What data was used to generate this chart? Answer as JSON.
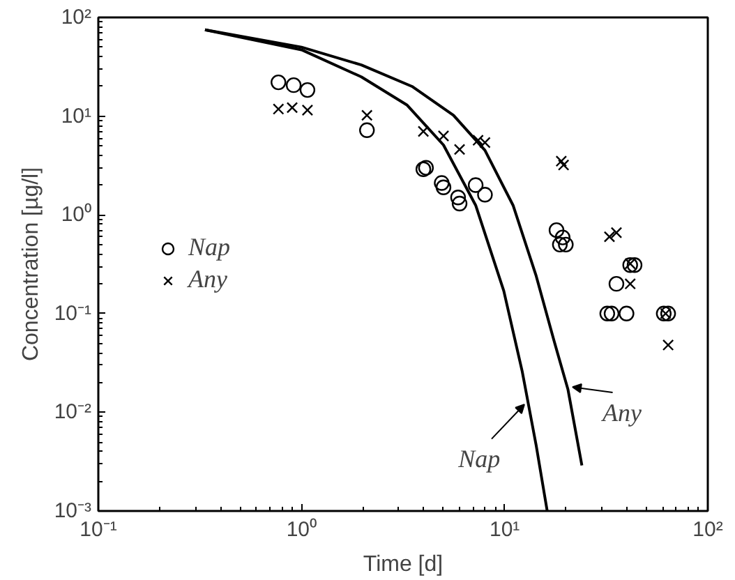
{
  "chart_data": {
    "type": "scatter",
    "xlabel": "Time [d]",
    "ylabel": "Concentration [µg/l]",
    "log": "xy",
    "xlim": [
      0.1,
      100
    ],
    "ylim": [
      0.001,
      100
    ],
    "xticks": [
      {
        "value": 0.1,
        "label": "10⁻¹"
      },
      {
        "value": 1,
        "label": "10⁰"
      },
      {
        "value": 10,
        "label": "10¹"
      },
      {
        "value": 100,
        "label": "10²"
      }
    ],
    "yticks": [
      {
        "value": 0.001,
        "label": "10⁻³"
      },
      {
        "value": 0.01,
        "label": "10⁻²"
      },
      {
        "value": 0.1,
        "label": "10⁻¹"
      },
      {
        "value": 1,
        "label": "10⁰"
      },
      {
        "value": 10,
        "label": "10¹"
      },
      {
        "value": 100,
        "label": "10²"
      }
    ],
    "grid": false,
    "legend": "left",
    "series": [
      {
        "name": "Nap",
        "marker": "circle",
        "color": "#000000",
        "x": [
          0.77,
          0.915,
          1.07,
          2.1,
          3.98,
          4.1,
          4.9,
          5.0,
          5.9,
          6.0,
          7.2,
          8.0,
          18,
          18.7,
          20,
          19.3,
          35.5,
          41.5,
          43.6,
          32,
          33.6,
          39.8,
          60.7,
          63.8
        ],
        "values": [
          22,
          20.6,
          18.4,
          7.2,
          2.9,
          3.0,
          2.1,
          1.9,
          1.5,
          1.3,
          2.0,
          1.6,
          0.7,
          0.5,
          0.5,
          0.59,
          0.2,
          0.31,
          0.31,
          0.1,
          0.1,
          0.1,
          0.1,
          0.1
        ]
      },
      {
        "name": "Any",
        "marker": "cross",
        "color": "#000000",
        "x": [
          0.77,
          0.9,
          1.07,
          2.1,
          3.98,
          5.0,
          6.0,
          7.4,
          8.0,
          19.0,
          19.5,
          32.8,
          35.5,
          41.5,
          41.5,
          62,
          63.8
        ],
        "values": [
          11.8,
          12.2,
          11.5,
          10.2,
          7.0,
          6.3,
          4.6,
          5.7,
          5.4,
          3.5,
          3.2,
          0.6,
          0.66,
          0.2,
          0.32,
          0.1,
          0.048
        ]
      },
      {
        "type": "line",
        "line_style": "solid",
        "color": "#000000",
        "x": [
          0.335,
          1.0,
          1.97,
          3.3,
          5.0,
          7.2,
          9.9,
          12.2,
          14.3,
          16.2
        ],
        "values": [
          75,
          47,
          25,
          13,
          5.1,
          1.25,
          0.17,
          0.026,
          0.0046,
          0.001
        ]
      },
      {
        "type": "line",
        "line_style": "solid",
        "color": "#000000",
        "x": [
          0.335,
          1.0,
          1.97,
          3.5,
          5.6,
          8.0,
          11,
          14.3,
          17.5,
          20.5,
          24
        ],
        "values": [
          75,
          50,
          33,
          20,
          10.2,
          4.5,
          1.25,
          0.24,
          0.053,
          0.017,
          0.0029
        ]
      }
    ],
    "annotations": [
      {
        "text": "Nap",
        "x": 12.5,
        "y": 0.012
      },
      {
        "text": "Any",
        "x": 21.6,
        "y": 0.018
      }
    ]
  }
}
